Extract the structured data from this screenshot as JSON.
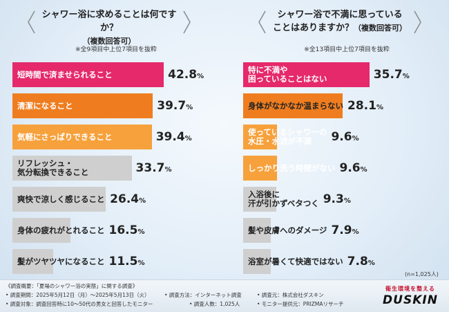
{
  "colors": {
    "pink": "#e5296a",
    "orange": "#ef7d1f",
    "orange_light": "#f7a13c",
    "gray": "#cfcfcf",
    "bracket": "#8a8f94"
  },
  "chart_data": [
    {
      "type": "bar",
      "orientation": "horizontal",
      "title": "シャワー浴に求めることは何ですか？",
      "subtitle": "（複数回答可）",
      "note": "※全9項目中上位7項目を抜粋",
      "categories": [
        "短時間で済ませられること",
        "清潔になること",
        "気軽にさっぱりできること",
        "リフレッシュ・\n気分転換できること",
        "爽快で涼しく感じること",
        "身体の疲れがとれること",
        "髪がツヤツヤになること"
      ],
      "values": [
        42.8,
        39.7,
        39.4,
        33.7,
        26.4,
        16.5,
        11.5
      ],
      "value_labels": [
        {
          "num": "42.8",
          "unit": "%"
        },
        {
          "num": "39.7",
          "unit": "%"
        },
        {
          "num": "39.4",
          "unit": "%"
        },
        {
          "num": "33.7",
          "unit": "%"
        },
        {
          "num": "26.4",
          "unit": "%"
        },
        {
          "num": "16.5",
          "unit": "%"
        },
        {
          "num": "11.5",
          "unit": "%"
        }
      ],
      "bar_colors": [
        "#e5296a",
        "#ef7d1f",
        "#f7a13c",
        "#cfcfcf",
        "#cfcfcf",
        "#cfcfcf",
        "#cfcfcf"
      ],
      "label_styles": [
        "light",
        "light",
        "light",
        "dark",
        "dark",
        "dark",
        "dark"
      ],
      "xlim": [
        0,
        100
      ]
    },
    {
      "type": "bar",
      "orientation": "horizontal",
      "title": "シャワー浴で不満に思っている\nことはありますか？",
      "subtitle": "（複数回答可）",
      "note": "※全13項目中上位7項目を抜粋",
      "categories": [
        "特に不満や\n困っていることはない",
        "身体がなかなか温まらない",
        "使っているシャワーの\n水圧・水流が不満",
        "しっかり洗う時間がない",
        "入浴後に\n汗が引かずベタつく",
        "髪や皮膚へのダメージ",
        "浴室が暑くて快適ではない"
      ],
      "values": [
        35.7,
        28.1,
        9.6,
        9.6,
        9.3,
        7.9,
        7.8
      ],
      "value_labels": [
        {
          "num": "35.7",
          "unit": "%"
        },
        {
          "num": "28.1",
          "unit": "%"
        },
        {
          "num": "9.6",
          "unit": "%"
        },
        {
          "num": "9.6",
          "unit": "%"
        },
        {
          "num": "9.3",
          "unit": "%"
        },
        {
          "num": "7.9",
          "unit": "%"
        },
        {
          "num": "7.8",
          "unit": "%"
        }
      ],
      "bar_colors": [
        "#e5296a",
        "#ef7d1f",
        "#f7a13c",
        "#f7a13c",
        "#cfcfcf",
        "#cfcfcf",
        "#cfcfcf"
      ],
      "label_styles": [
        "light",
        "dark",
        "light",
        "light",
        "dark",
        "dark",
        "dark"
      ],
      "xlim": [
        0,
        100
      ]
    }
  ],
  "sample_note": "(n=1,025人)",
  "footer": {
    "overview": "《調査概要：「夏場のシャワー浴の実態」に関する調査》",
    "period": "• 調査期間：2025年5月12日（月）〜2025年5月13日（火）",
    "method": "• 調査方法：インターネット調査",
    "target": "• 調査対象：調査回答時に10〜50代の男女と回答したモニター",
    "count": "• 調査人数：1,025人",
    "source": "• 調査元：株式会社ダスキン",
    "provider": "• モニター提供元：PRIZMAリサーチ"
  },
  "logo": {
    "tagline": "衛生環境を整える",
    "word": "DUSKIN"
  }
}
